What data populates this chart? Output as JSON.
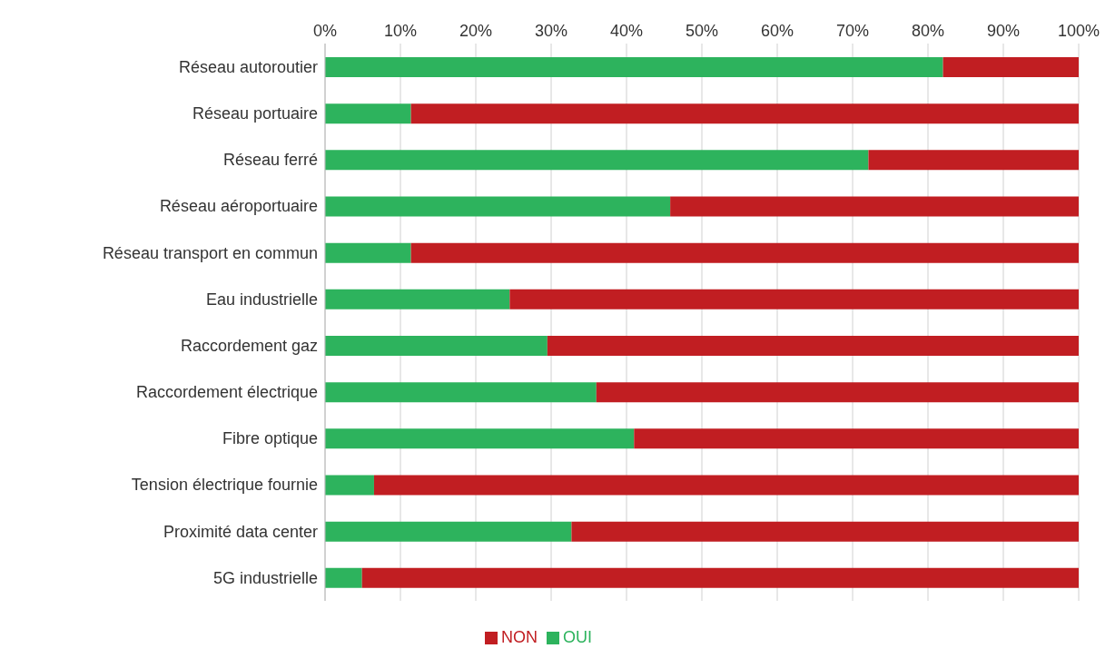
{
  "chart_data": {
    "type": "bar",
    "orientation": "horizontal",
    "stacked": true,
    "categories": [
      "Réseau autoroutier",
      "Réseau portuaire",
      "Réseau ferré",
      "Réseau aéroportuaire",
      "Réseau transport en commun",
      "Eau industrielle",
      "Raccordement gaz",
      "Raccordement électrique",
      "Fibre optique",
      "Tension électrique fournie",
      "Proximité data center",
      "5G industrielle"
    ],
    "series": [
      {
        "name": "OUI",
        "color": "#2db35d",
        "values": [
          82.0,
          11.4,
          72.1,
          45.8,
          11.4,
          24.5,
          29.5,
          36.0,
          41.0,
          6.5,
          32.7,
          4.9
        ]
      },
      {
        "name": "NON",
        "color": "#c11e22",
        "values": [
          18.0,
          88.6,
          27.9,
          54.2,
          88.6,
          75.5,
          70.5,
          64.0,
          59.0,
          93.5,
          67.3,
          95.1
        ]
      }
    ],
    "xlim": [
      0,
      100
    ],
    "xticks": [
      {
        "value": 0,
        "label": "0%"
      },
      {
        "value": 10,
        "label": "10%"
      },
      {
        "value": 20,
        "label": "20%"
      },
      {
        "value": 30,
        "label": "30%"
      },
      {
        "value": 40,
        "label": "40%"
      },
      {
        "value": 50,
        "label": "50%"
      },
      {
        "value": 60,
        "label": "60%"
      },
      {
        "value": 70,
        "label": "70%"
      },
      {
        "value": 80,
        "label": "80%"
      },
      {
        "value": 90,
        "label": "90%"
      },
      {
        "value": 100,
        "label": "100%"
      }
    ],
    "grid": "x",
    "legend": "bottom"
  }
}
